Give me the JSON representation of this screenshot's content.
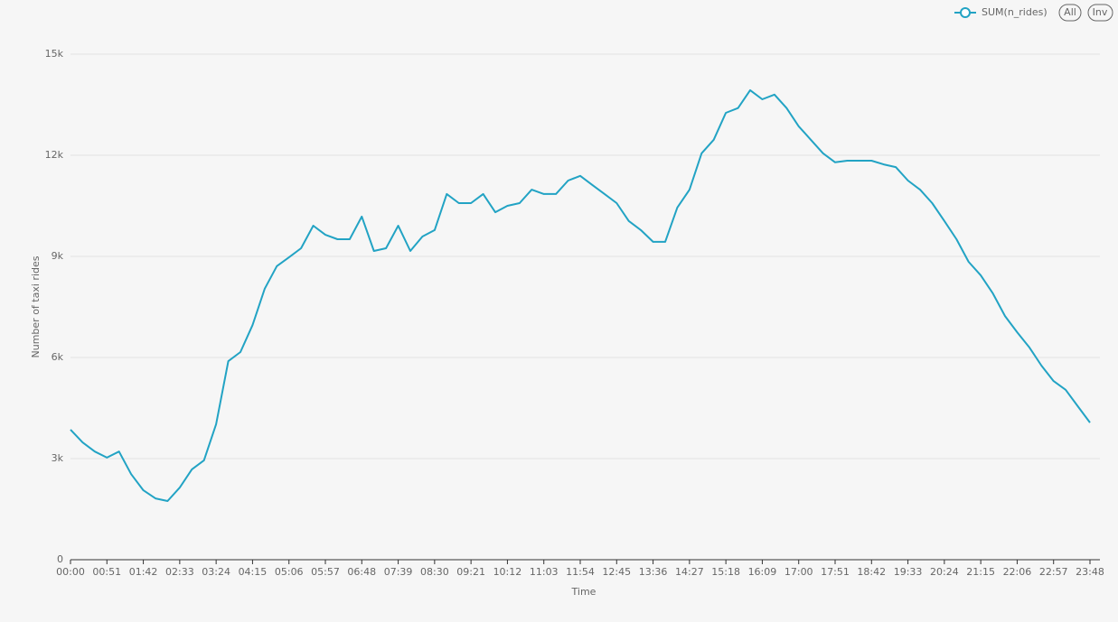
{
  "chart_data": {
    "type": "line",
    "xlabel": "Time",
    "ylabel": "Number of taxi rides",
    "legend_buttons": [
      "All",
      "Inv"
    ],
    "x": [
      "00:00",
      null,
      null,
      "00:51",
      null,
      null,
      "01:42",
      null,
      null,
      "02:33",
      null,
      null,
      "03:24",
      null,
      null,
      "04:15",
      null,
      null,
      "05:06",
      null,
      null,
      "05:57",
      null,
      null,
      "06:48",
      null,
      null,
      "07:39",
      null,
      null,
      "08:30",
      null,
      null,
      "09:21",
      null,
      null,
      "10:12",
      null,
      null,
      "11:03",
      null,
      null,
      "11:54",
      null,
      null,
      "12:45",
      null,
      null,
      "13:36",
      null,
      null,
      "14:27",
      null,
      null,
      "15:18",
      null,
      null,
      "16:09",
      null,
      null,
      "17:00",
      null,
      null,
      "17:51",
      null,
      null,
      "18:42",
      null,
      null,
      "19:33",
      null,
      null,
      "20:24",
      null,
      null,
      "21:15",
      null,
      null,
      "22:06",
      null,
      null,
      "22:57",
      null,
      null,
      "23:48"
    ],
    "series": [
      {
        "name": "SUM(n_rides)",
        "color": "#22a3c4",
        "values": [
          3860,
          3480,
          3210,
          3030,
          3210,
          2540,
          2060,
          1820,
          1740,
          2140,
          2680,
          2950,
          4020,
          5890,
          6160,
          6960,
          8040,
          8710,
          8970,
          9240,
          9910,
          9640,
          9510,
          9510,
          10180,
          9160,
          9240,
          9910,
          9160,
          9590,
          9780,
          10850,
          10580,
          10580,
          10850,
          10310,
          10500,
          10580,
          10980,
          10850,
          10850,
          11250,
          11390,
          11120,
          10850,
          10580,
          10050,
          9780,
          9430,
          9430,
          10450,
          10980,
          12060,
          12460,
          13260,
          13400,
          13930,
          13660,
          13800,
          13400,
          12860,
          12460,
          12060,
          11790,
          11840,
          11840,
          11840,
          11730,
          11650,
          11250,
          10980,
          10580,
          10050,
          9510,
          8840,
          8440,
          7900,
          7230,
          6750,
          6300,
          5760,
          5300,
          5040,
          4550,
          4070
        ]
      }
    ],
    "ylim": [
      0,
      15000
    ],
    "yticks": [
      0,
      {
        "value": 3000,
        "label": "3k"
      },
      {
        "value": 6000,
        "label": "6k"
      },
      {
        "value": 9000,
        "label": "9k"
      },
      {
        "value": 12000,
        "label": "12k"
      },
      {
        "value": 15000,
        "label": "15k"
      }
    ],
    "grid": true
  }
}
